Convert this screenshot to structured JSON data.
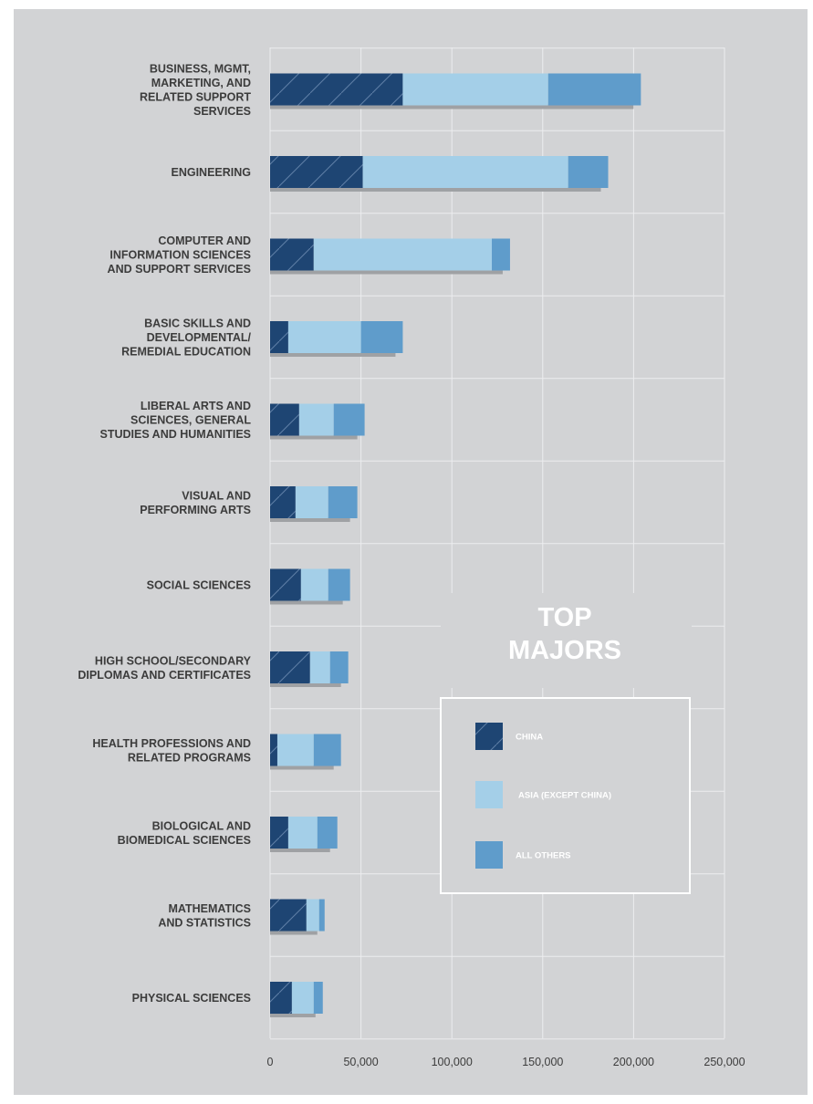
{
  "chart_data": {
    "type": "bar",
    "orientation": "horizontal",
    "stacked": true,
    "title": "TOP MAJORS",
    "categories": [
      "BUSINESS, MGMT, MARKETING, AND RELATED SUPPORT SERVICES",
      "ENGINEERING",
      "COMPUTER AND INFORMATION SCIENCES AND SUPPORT SERVICES",
      "BASIC SKILLS AND DEVELOPMENTAL/ REMEDIAL EDUCATION",
      "LIBERAL ARTS AND SCIENCES, GENERAL STUDIES AND HUMANITIES",
      "VISUAL AND PERFORMING ARTS",
      "SOCIAL SCIENCES",
      "HIGH SCHOOL/SECONDARY DIPLOMAS AND CERTIFICATES",
      "HEALTH PROFESSIONS AND RELATED PROGRAMS",
      "BIOLOGICAL AND BIOMEDICAL SCIENCES",
      "MATHEMATICS AND STATISTICS",
      "PHYSICAL SCIENCES"
    ],
    "category_lines": [
      [
        "BUSINESS, MGMT,",
        "MARKETING, AND",
        "RELATED SUPPORT",
        "SERVICES"
      ],
      [
        "ENGINEERING"
      ],
      [
        "COMPUTER AND",
        "INFORMATION SCIENCES",
        "AND SUPPORT SERVICES"
      ],
      [
        "BASIC SKILLS AND",
        "DEVELOPMENTAL/",
        "REMEDIAL EDUCATION"
      ],
      [
        "LIBERAL ARTS AND",
        "SCIENCES, GENERAL",
        "STUDIES AND HUMANITIES"
      ],
      [
        "VISUAL AND",
        "PERFORMING ARTS"
      ],
      [
        "SOCIAL SCIENCES"
      ],
      [
        "HIGH SCHOOL/SECONDARY",
        "DIPLOMAS AND CERTIFICATES"
      ],
      [
        "HEALTH PROFESSIONS AND",
        "RELATED PROGRAMS"
      ],
      [
        "BIOLOGICAL AND",
        "BIOMEDICAL SCIENCES"
      ],
      [
        "MATHEMATICS",
        "AND STATISTICS"
      ],
      [
        "PHYSICAL SCIENCES"
      ]
    ],
    "series": [
      {
        "name": "CHINA",
        "color": "#1e4573",
        "values": [
          73000,
          51000,
          24000,
          10000,
          16000,
          14000,
          17000,
          22000,
          4000,
          10000,
          20000,
          12000
        ]
      },
      {
        "name": "ASIA (EXCEPT CHINA)",
        "color": "#a4cfe8",
        "values": [
          80000,
          113000,
          98000,
          40000,
          19000,
          18000,
          15000,
          11000,
          20000,
          16000,
          7000,
          12000
        ]
      },
      {
        "name": "ALL OTHERS",
        "color": "#5f9ccb",
        "values": [
          51000,
          22000,
          10000,
          23000,
          17000,
          16000,
          12000,
          10000,
          15000,
          11000,
          3000,
          5000
        ]
      }
    ],
    "xlim": [
      0,
      250000
    ],
    "xticks": [
      0,
      50000,
      100000,
      150000,
      200000,
      250000
    ],
    "xtick_labels": [
      "0",
      "50,000",
      "100,000",
      "150,000",
      "200,000",
      "250,000"
    ],
    "grid": true,
    "legend_position": "bottom-right"
  }
}
